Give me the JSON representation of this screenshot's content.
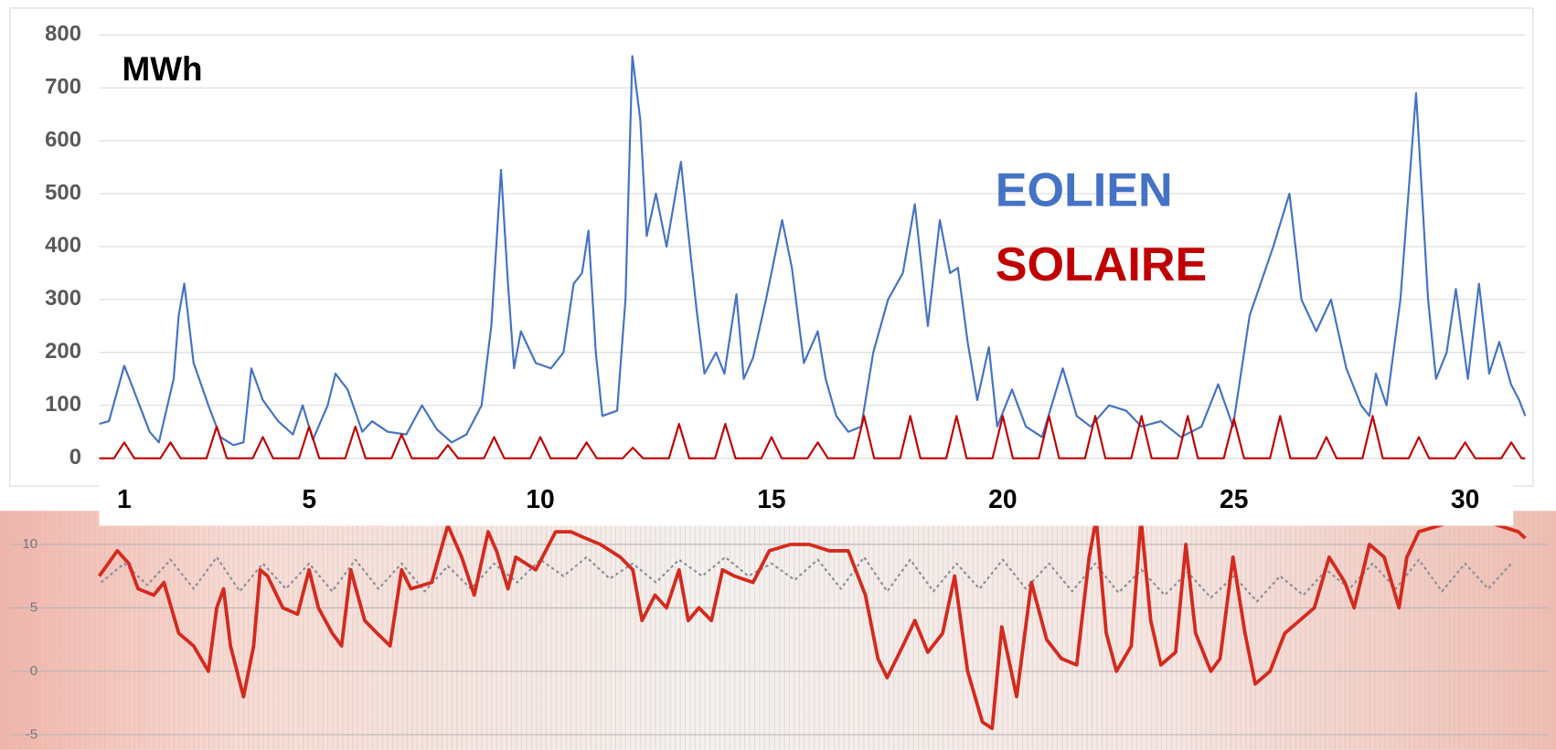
{
  "chart_data": [
    {
      "type": "line",
      "y_label": "MWh",
      "xlim": [
        0.46,
        31.3
      ],
      "xticks": [
        1,
        5,
        10,
        15,
        20,
        25,
        30
      ],
      "ylim": [
        0,
        800
      ],
      "yticks": [
        0,
        100,
        200,
        300,
        400,
        500,
        600,
        700,
        800
      ],
      "grid": true,
      "series": [
        {
          "name": "EOLIEN",
          "color": "#4472c4",
          "x": [
            0.46,
            0.67,
            1,
            1.2,
            1.55,
            1.75,
            2.07,
            2.18,
            2.3,
            2.5,
            2.82,
            3.08,
            3.36,
            3.58,
            3.75,
            4,
            4.33,
            4.65,
            4.86,
            5.08,
            5.4,
            5.57,
            5.83,
            6.15,
            6.36,
            6.7,
            7.1,
            7.44,
            7.76,
            8.08,
            8.4,
            8.73,
            8.94,
            9.15,
            9.3,
            9.43,
            9.58,
            9.9,
            10.23,
            10.5,
            10.72,
            10.9,
            11.04,
            11.2,
            11.34,
            11.66,
            11.84,
            11.99,
            12.16,
            12.3,
            12.5,
            12.73,
            13.04,
            13.17,
            13.38,
            13.55,
            13.8,
            13.98,
            14.24,
            14.4,
            14.6,
            14.88,
            15.23,
            15.44,
            15.7,
            16,
            16.17,
            16.4,
            16.66,
            16.94,
            17.2,
            17.52,
            17.84,
            18.1,
            18.38,
            18.64,
            18.86,
            19.03,
            19.24,
            19.45,
            19.7,
            19.88,
            20.2,
            20.5,
            20.85,
            21.3,
            21.6,
            21.9,
            22.3,
            22.67,
            23,
            23.42,
            23.85,
            24.3,
            24.66,
            24.98,
            25.34,
            25.85,
            26.2,
            26.46,
            26.78,
            27.1,
            27.43,
            27.75,
            27.93,
            28.07,
            28.3,
            28.6,
            28.94,
            29.2,
            29.37,
            29.6,
            29.8,
            30.06,
            30.3,
            30.52,
            30.74,
            30.99,
            31.17,
            31.3
          ],
          "values": [
            65,
            70,
            175,
            130,
            50,
            30,
            150,
            270,
            330,
            180,
            100,
            40,
            25,
            30,
            170,
            110,
            70,
            45,
            100,
            35,
            100,
            160,
            130,
            50,
            70,
            50,
            45,
            100,
            55,
            30,
            45,
            100,
            250,
            545,
            330,
            170,
            240,
            180,
            170,
            200,
            330,
            350,
            430,
            200,
            80,
            90,
            300,
            760,
            640,
            420,
            500,
            400,
            560,
            450,
            280,
            160,
            200,
            160,
            310,
            150,
            190,
            300,
            450,
            360,
            180,
            240,
            150,
            80,
            50,
            60,
            200,
            300,
            350,
            480,
            250,
            450,
            350,
            360,
            220,
            110,
            210,
            60,
            130,
            60,
            40,
            170,
            80,
            60,
            100,
            90,
            60,
            70,
            40,
            60,
            140,
            60,
            270,
            400,
            500,
            300,
            240,
            300,
            170,
            100,
            80,
            160,
            100,
            300,
            690,
            300,
            150,
            200,
            320,
            150,
            330,
            160,
            220,
            140,
            110,
            80
          ]
        },
        {
          "name": "SOLAIRE",
          "color": "#c00000",
          "x": [
            0.46,
            0.78,
            1,
            1.22,
            1.78,
            2,
            2.22,
            2.78,
            3,
            3.22,
            3.78,
            4,
            4.22,
            4.78,
            5,
            5.22,
            5.78,
            6,
            6.22,
            6.78,
            7,
            7.22,
            7.78,
            8,
            8.22,
            8.78,
            9,
            9.22,
            9.78,
            10,
            10.22,
            10.78,
            11,
            11.22,
            11.78,
            12,
            12.22,
            12.78,
            13,
            13.22,
            13.78,
            14,
            14.22,
            14.78,
            15,
            15.22,
            15.78,
            16,
            16.22,
            16.78,
            17,
            17.22,
            17.78,
            18,
            18.22,
            18.78,
            19,
            19.22,
            19.78,
            20,
            20.22,
            20.78,
            21,
            21.22,
            21.78,
            22,
            22.22,
            22.78,
            23,
            23.22,
            23.78,
            24,
            24.22,
            24.78,
            25,
            25.22,
            25.78,
            26,
            26.22,
            26.78,
            27,
            27.22,
            27.78,
            28,
            28.22,
            28.78,
            29,
            29.22,
            29.78,
            30,
            30.22,
            30.78,
            31,
            31.22,
            31.3
          ],
          "values": [
            0,
            0,
            30,
            0,
            0,
            30,
            0,
            0,
            60,
            0,
            0,
            40,
            0,
            0,
            60,
            0,
            0,
            60,
            0,
            0,
            45,
            0,
            0,
            25,
            0,
            0,
            40,
            0,
            0,
            40,
            0,
            0,
            30,
            0,
            0,
            20,
            0,
            0,
            65,
            0,
            0,
            65,
            0,
            0,
            40,
            0,
            0,
            30,
            0,
            0,
            80,
            0,
            0,
            80,
            0,
            0,
            80,
            0,
            0,
            80,
            0,
            0,
            80,
            0,
            0,
            80,
            0,
            0,
            80,
            0,
            0,
            80,
            0,
            0,
            75,
            0,
            0,
            80,
            0,
            0,
            40,
            0,
            0,
            80,
            0,
            0,
            40,
            0,
            0,
            30,
            0,
            0,
            30,
            0,
            0
          ]
        }
      ]
    },
    {
      "type": "line",
      "xlim": [
        0.46,
        31.3
      ],
      "ylim": [
        -5.8,
        12.1
      ],
      "yticks": [
        -5,
        0,
        5,
        10
      ],
      "grid": true,
      "series": [
        {
          "color": "#8a8f9a",
          "style": "dotted",
          "x": [
            0.5,
            1,
            1.5,
            2,
            2.5,
            3,
            3.5,
            4,
            4.5,
            5,
            5.5,
            6,
            6.5,
            7,
            7.5,
            8,
            8.5,
            9,
            9.5,
            10,
            10.5,
            11,
            11.5,
            12,
            12.5,
            13,
            13.5,
            14,
            14.5,
            15,
            15.5,
            16,
            16.5,
            17,
            17.5,
            18,
            18.5,
            19,
            19.5,
            20,
            20.5,
            21,
            21.5,
            22,
            22.5,
            23,
            23.5,
            24,
            24.5,
            25,
            25.5,
            26,
            26.5,
            27,
            27.5,
            28,
            28.5,
            29,
            29.5,
            30,
            30.5,
            31
          ],
          "values": [
            7,
            8.5,
            6.8,
            8.8,
            6.5,
            9,
            6.3,
            8.5,
            6.5,
            8.5,
            6.3,
            8.8,
            6.5,
            8.5,
            6.3,
            8.3,
            6.5,
            8.5,
            7,
            8.8,
            7.5,
            9,
            7.3,
            8.5,
            7,
            8.8,
            7.5,
            9,
            7.5,
            8.5,
            7.2,
            8.8,
            6.5,
            9,
            6.3,
            8.8,
            6.3,
            8.5,
            6.5,
            8.8,
            6.5,
            8.5,
            6.3,
            8.5,
            6.2,
            8,
            6,
            7.8,
            5.8,
            7.5,
            5.5,
            7.5,
            6,
            8,
            6.5,
            8.5,
            6.5,
            8.8,
            6.3,
            8.5,
            6.5,
            8.5
          ]
        },
        {
          "color": "#d42a1e",
          "style": "solid",
          "x": [
            0.46,
            0.85,
            1.1,
            1.3,
            1.64,
            1.86,
            2.18,
            2.5,
            2.82,
            3,
            3.15,
            3.3,
            3.58,
            3.8,
            3.94,
            4.1,
            4.43,
            4.75,
            5,
            5.2,
            5.5,
            5.7,
            5.9,
            6.2,
            6.47,
            6.75,
            7,
            7.2,
            7.65,
            8,
            8.3,
            8.57,
            8.87,
            9.05,
            9.3,
            9.47,
            9.9,
            10.33,
            10.66,
            10.97,
            11.3,
            11.73,
            12,
            12.2,
            12.48,
            12.73,
            13,
            13.2,
            13.43,
            13.7,
            13.94,
            14.2,
            14.6,
            14.95,
            15.4,
            15.82,
            16.25,
            16.66,
            17.03,
            17.3,
            17.5,
            17.84,
            18.1,
            18.38,
            18.7,
            18.96,
            19.24,
            19.56,
            19.77,
            19.98,
            20.3,
            20.62,
            20.95,
            21.27,
            21.6,
            21.87,
            22.02,
            22.24,
            22.46,
            22.78,
            22.99,
            23.2,
            23.42,
            23.74,
            23.96,
            24.17,
            24.5,
            24.7,
            24.98,
            25.24,
            25.46,
            25.78,
            26.1,
            26.42,
            26.74,
            27.06,
            27.4,
            27.6,
            27.93,
            28.25,
            28.57,
            28.74,
            29,
            29.45,
            29.88,
            30.3,
            30.72,
            31.15,
            31.3
          ],
          "values": [
            7.5,
            9.5,
            8.5,
            6.5,
            6,
            7,
            3,
            2,
            0,
            5,
            6.5,
            2,
            -2,
            2,
            8,
            7.5,
            5,
            4.5,
            8,
            5,
            3,
            2,
            8,
            4,
            3,
            2,
            8,
            6.5,
            7,
            11.5,
            9,
            6,
            11,
            9.5,
            6.5,
            9,
            8,
            11,
            11,
            10.5,
            10,
            9,
            8,
            4,
            6,
            5,
            8,
            4,
            5,
            4,
            8,
            7.5,
            7,
            9.5,
            10,
            10,
            9.5,
            9.5,
            6,
            1,
            -0.5,
            2,
            4,
            1.5,
            3,
            7.5,
            0,
            -4,
            -4.5,
            3.5,
            -2,
            7,
            2.5,
            1,
            0.5,
            9,
            12,
            3,
            0,
            2,
            12,
            4,
            0.5,
            1.5,
            10,
            3,
            0,
            1,
            9,
            3,
            -1,
            0,
            3,
            4,
            5,
            9,
            7,
            5,
            10,
            9,
            5,
            9,
            11,
            11.5,
            12,
            12,
            11.5,
            11,
            10.5
          ]
        }
      ]
    }
  ]
}
